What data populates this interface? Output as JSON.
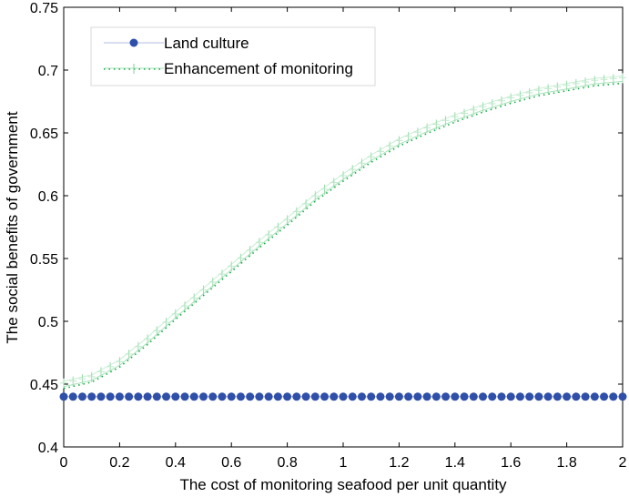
{
  "chart_data": {
    "type": "line",
    "title": "",
    "xlabel": "The cost of monitoring seafood per unit quantity",
    "ylabel": "The social benefits of government",
    "xlim": [
      0,
      2
    ],
    "ylim": [
      0.4,
      0.75
    ],
    "xticks": [
      0,
      0.2,
      0.4,
      0.6,
      0.8,
      1,
      1.2,
      1.4,
      1.6,
      1.8,
      2
    ],
    "yticks": [
      0.4,
      0.45,
      0.5,
      0.55,
      0.6,
      0.65,
      0.7,
      0.75
    ],
    "xtick_labels": [
      "0",
      "0.2",
      "0.4",
      "0.6",
      "0.8",
      "1",
      "1.2",
      "1.4",
      "1.6",
      "1.8",
      "2"
    ],
    "ytick_labels": [
      "0.4",
      "0.45",
      "0.5",
      "0.55",
      "0.6",
      "0.65",
      "0.7",
      "0.75"
    ],
    "grid": false,
    "legend_position": "top-left",
    "series": [
      {
        "name": "Land culture",
        "color": "#2f4fa8",
        "marker": "circle",
        "x": [
          0,
          0.2,
          0.4,
          0.6,
          0.8,
          1,
          1.2,
          1.4,
          1.6,
          1.8,
          2
        ],
        "y": [
          0.44,
          0.44,
          0.44,
          0.44,
          0.44,
          0.44,
          0.44,
          0.44,
          0.44,
          0.44,
          0.44
        ]
      },
      {
        "name": "Enhancement of monitoring",
        "color": "#1aa84a",
        "marker": "plus",
        "x": [
          0,
          0.1,
          0.2,
          0.3,
          0.4,
          0.5,
          0.6,
          0.7,
          0.8,
          0.9,
          1,
          1.1,
          1.2,
          1.3,
          1.4,
          1.5,
          1.6,
          1.7,
          1.8,
          1.9,
          2
        ],
        "y": [
          0.448,
          0.453,
          0.465,
          0.483,
          0.503,
          0.522,
          0.541,
          0.56,
          0.578,
          0.597,
          0.613,
          0.628,
          0.641,
          0.651,
          0.66,
          0.668,
          0.675,
          0.681,
          0.685,
          0.689,
          0.691
        ]
      }
    ]
  }
}
